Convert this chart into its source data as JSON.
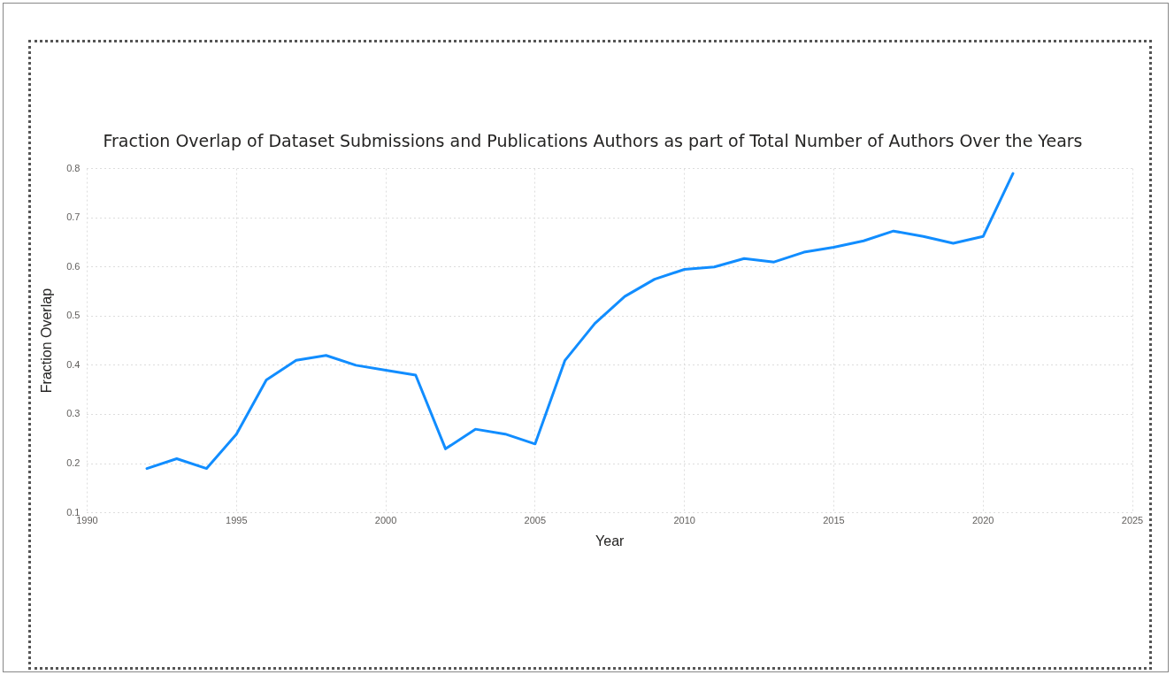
{
  "chart_data": {
    "type": "line",
    "title": "Fraction Overlap of Dataset Submissions and Publications Authors as part of Total Number of Authors Over the Years",
    "xlabel": "Year",
    "ylabel": "Fraction Overlap",
    "x": [
      1992,
      1993,
      1994,
      1995,
      1996,
      1997,
      1998,
      1999,
      2000,
      2001,
      2002,
      2003,
      2004,
      2005,
      2006,
      2007,
      2008,
      2009,
      2010,
      2011,
      2012,
      2013,
      2014,
      2015,
      2016,
      2017,
      2018,
      2019,
      2020,
      2021
    ],
    "series": [
      {
        "color": "#118dff",
        "values": [
          0.19,
          0.21,
          0.19,
          0.26,
          0.37,
          0.41,
          0.42,
          0.4,
          0.39,
          0.38,
          0.23,
          0.27,
          0.26,
          0.24,
          0.41,
          0.485,
          0.54,
          0.575,
          0.595,
          0.6,
          0.617,
          0.61,
          0.63,
          0.64,
          0.653,
          0.673,
          0.662,
          0.648,
          0.662,
          0.79
        ]
      }
    ],
    "xlim": [
      1990,
      2025
    ],
    "xticks": [
      1990,
      1995,
      2000,
      2005,
      2010,
      2015,
      2020,
      2025
    ],
    "ylim": [
      0.1,
      0.8
    ],
    "yticks": [
      0.1,
      0.2,
      0.3,
      0.4,
      0.5,
      0.6,
      0.7,
      0.8
    ],
    "grid": true,
    "legend": false,
    "marker": "none",
    "line_style": "solid"
  }
}
